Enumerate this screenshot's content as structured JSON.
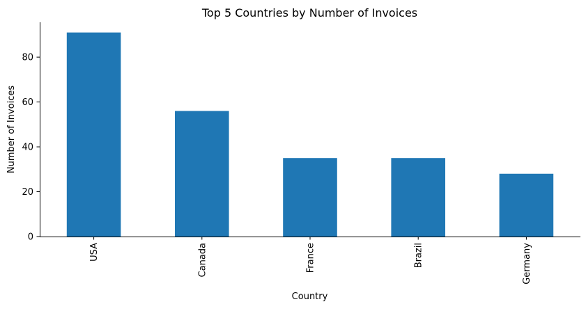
{
  "chart_data": {
    "type": "bar",
    "title": "Top 5 Countries by Number of Invoices",
    "xlabel": "Country",
    "ylabel": "Number of Invoices",
    "categories": [
      "USA",
      "Canada",
      "France",
      "Brazil",
      "Germany"
    ],
    "values": [
      91,
      56,
      35,
      35,
      28
    ],
    "ylim": [
      0,
      95.55
    ],
    "yticks": [
      0,
      20,
      40,
      60,
      80
    ],
    "grid": false,
    "legend": "none",
    "bar_color": "#1f77b4"
  }
}
